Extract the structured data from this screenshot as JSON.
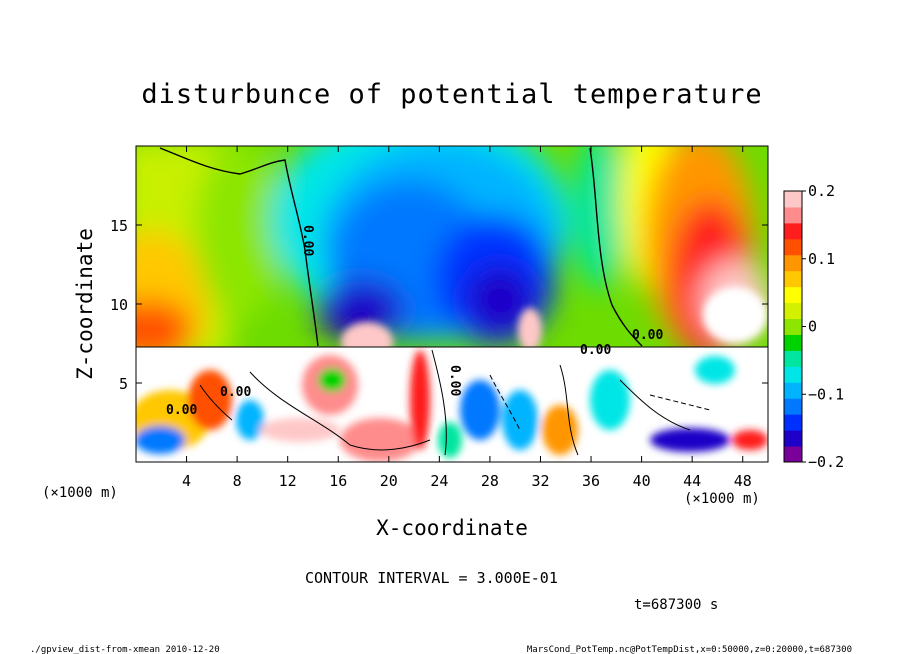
{
  "chart_data": {
    "type": "heatmap",
    "title": "disturbunce of potential temperature",
    "xlabel": "X-coordinate",
    "ylabel": "Z-coordinate",
    "x_unit_label": "(×1000 m)",
    "y_unit_label": "(×1000 m)",
    "xlim": [
      0,
      50
    ],
    "ylim": [
      0,
      20
    ],
    "x_ticks": [
      4,
      8,
      12,
      16,
      20,
      24,
      28,
      32,
      36,
      40,
      44,
      48
    ],
    "y_ticks": [
      5,
      10,
      15
    ],
    "colorbar": {
      "range": [
        -0.2,
        0.2
      ],
      "tick_values": [
        0.2,
        0.1,
        0,
        -0.1,
        -0.2
      ],
      "tick_labels": [
        "0.2",
        "0.1",
        "0",
        "−0.1",
        "−0.2"
      ],
      "colors_low_to_high": [
        "#7a009a",
        "#1e00c8",
        "#0030ff",
        "#0078ff",
        "#00b4ff",
        "#00e6e6",
        "#00e6a0",
        "#00d200",
        "#8ce600",
        "#d2f000",
        "#ffff00",
        "#ffc800",
        "#ff9600",
        "#ff5000",
        "#ff1e1e",
        "#ff8c8c",
        "#ffc8c8"
      ]
    },
    "contour_interval_label": "CONTOUR INTERVAL = 3.000E-01",
    "contour_labels": [
      "0.00",
      "0.00",
      "0.00",
      "0.00",
      "0.00",
      "0.00"
    ],
    "time_label": "t=687300 s"
  },
  "footer": {
    "left": "./gpview_dist-from-xmean  2010-12-20",
    "right": "MarsCond_PotTemp.nc@PotTempDist,x=0:50000,z=0:20000,t=687300"
  }
}
